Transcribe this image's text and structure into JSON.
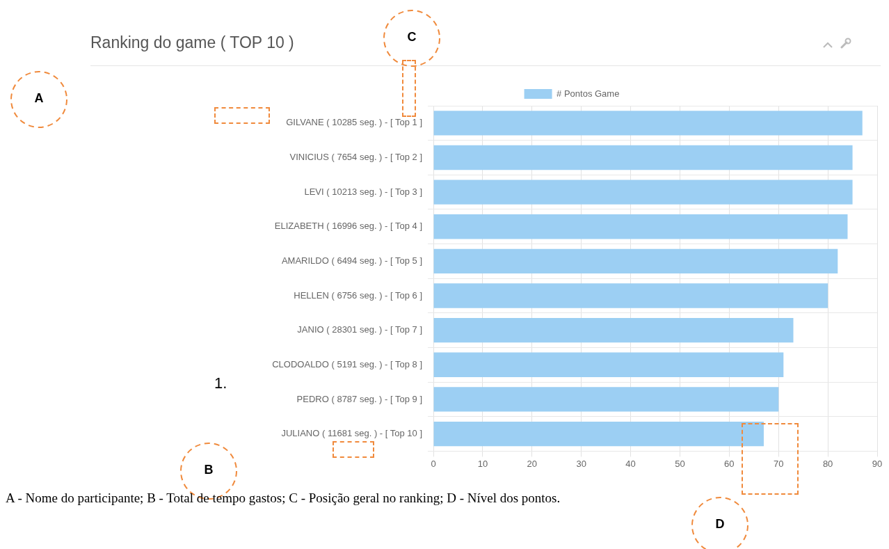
{
  "chart_data": {
    "type": "bar",
    "orientation": "horizontal",
    "title": "Ranking do game ( TOP 10 )",
    "categories": [
      "GILVANE ( 10285 seg. ) - [ Top 1 ]",
      "VINICIUS ( 7654 seg. ) - [ Top 2 ]",
      "LEVI ( 10213 seg. ) - [ Top 3 ]",
      "ELIZABETH ( 16996 seg. ) - [ Top 4 ]",
      "AMARILDO ( 6494 seg. ) - [ Top 5 ]",
      "HELLEN ( 6756 seg. ) - [ Top 6 ]",
      "JANIO ( 28301 seg. ) - [ Top 7 ]",
      "CLODOALDO ( 5191 seg. ) - [ Top 8 ]",
      "PEDRO ( 8787 seg. ) - [ Top 9 ]",
      "JULIANO ( 11681 seg. ) - [ Top 10 ]"
    ],
    "series": [
      {
        "name": "# Pontos Game",
        "color": "#9ccff3",
        "values": [
          87,
          85,
          85,
          84,
          82,
          80,
          73,
          71,
          70,
          67
        ]
      }
    ],
    "xlim": [
      0,
      90
    ],
    "xticks": [
      0,
      10,
      20,
      30,
      40,
      50,
      60,
      70,
      80,
      90
    ],
    "grid": true,
    "legend": "top",
    "annotations": [
      "A",
      "B",
      "C",
      "D",
      "1.",
      "A - Nome do participante; B - Total de tempo gastos; C - Posição geral no ranking; D - Nível dos pontos."
    ]
  }
}
